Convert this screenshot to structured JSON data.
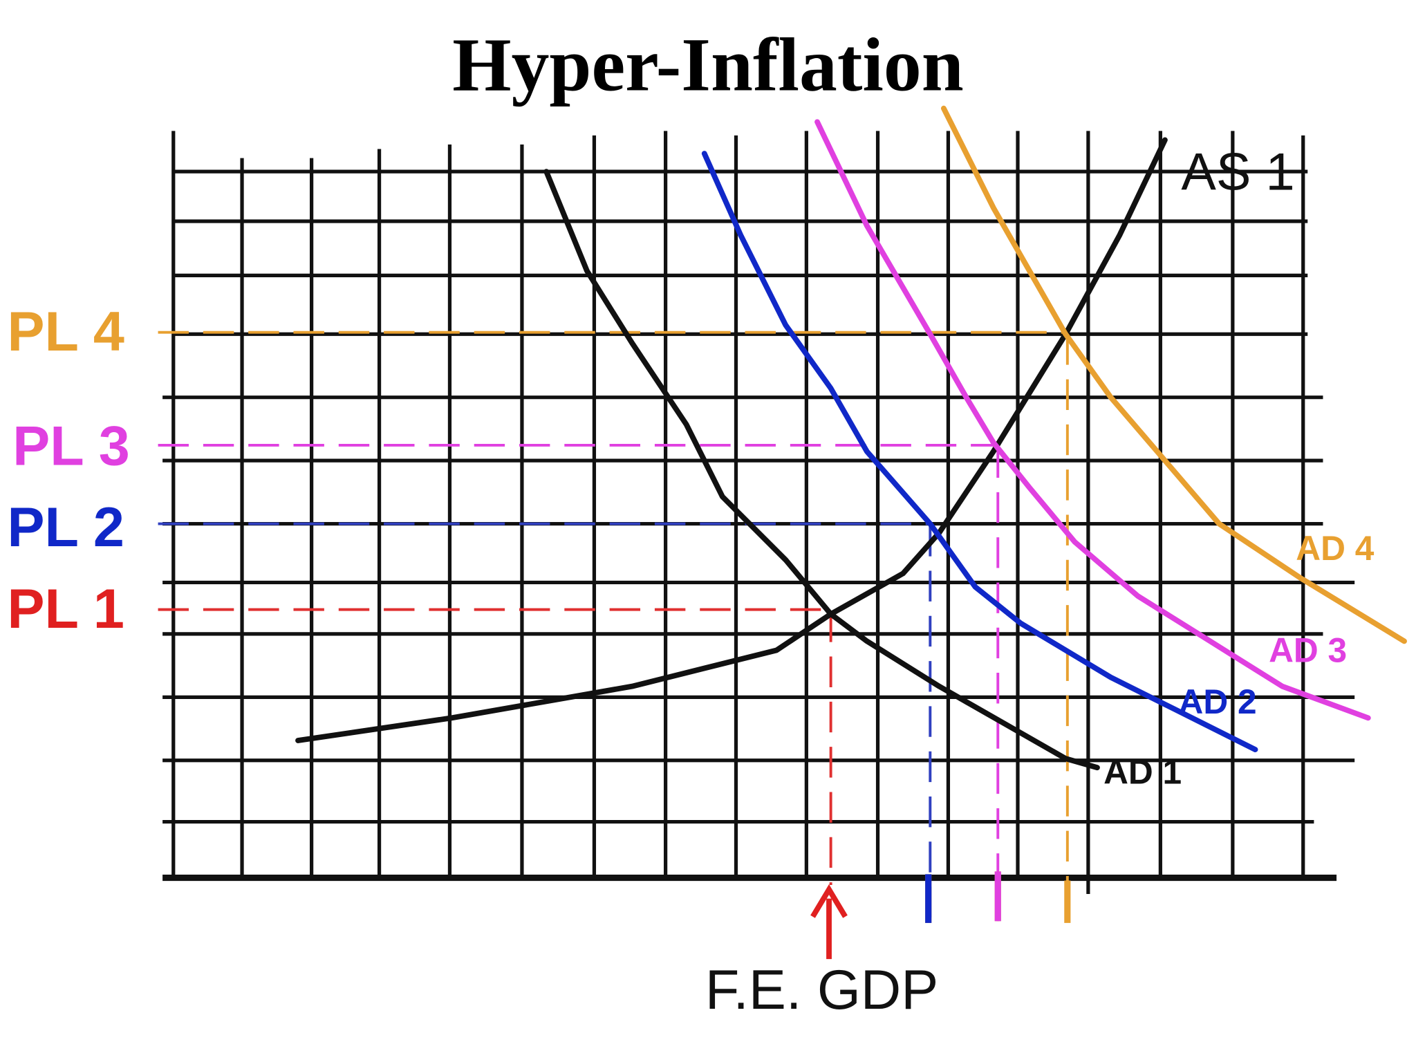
{
  "title": "Hyper-Inflation",
  "price_levels": [
    "PL 4",
    "PL 3",
    "PL 2",
    "PL 1"
  ],
  "supply_curve": "AS 1",
  "demand_curves": [
    "AD 1",
    "AD 2",
    "AD 3",
    "AD 4"
  ],
  "x_axis_label": "F.E. GDP"
}
